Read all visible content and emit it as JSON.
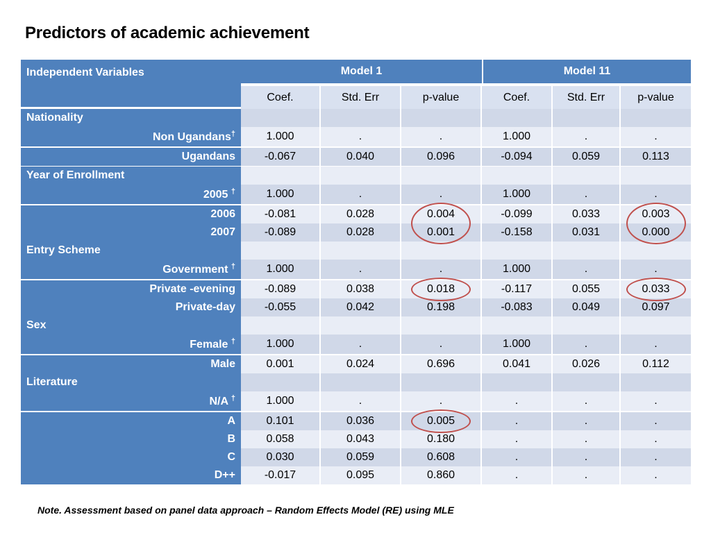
{
  "title": "Predictors of academic achievement",
  "note": "Note. Assessment based on panel data approach – Random Effects Model (RE) using MLE",
  "header": {
    "var_label": "Independent Variables",
    "model1": "Model 1",
    "model2": "Model 11",
    "sub": [
      "Coef.",
      "Std. Err",
      "p-value",
      "Coef.",
      "Std. Err",
      "p-value"
    ]
  },
  "dagger": "†",
  "rows": [
    {
      "label": "Nationality",
      "cat": true
    },
    {
      "label": "Non Ugandans",
      "ref": true,
      "vals": [
        "1.000",
        ".",
        ".",
        "1.000",
        ".",
        "."
      ]
    },
    {
      "label": "Ugandans",
      "vals": [
        "-0.067",
        "0.040",
        "0.096",
        "-0.094",
        "0.059",
        "0.113"
      ]
    },
    {
      "label": "Year of Enrollment",
      "cat": true
    },
    {
      "label": "2005 ",
      "ref": true,
      "vals": [
        "1.000",
        ".",
        ".",
        "1.000",
        ".",
        "."
      ]
    },
    {
      "label": "2006",
      "vals": [
        "-0.081",
        "0.028",
        "0.004",
        "-0.099",
        "0.033",
        "0.003"
      ]
    },
    {
      "label": "2007",
      "vals": [
        "-0.089",
        "0.028",
        "0.001",
        "-0.158",
        "0.031",
        "0.000"
      ]
    },
    {
      "label": "Entry Scheme",
      "cat": true
    },
    {
      "label": "Government ",
      "ref": true,
      "vals": [
        "1.000",
        ".",
        ".",
        "1.000",
        ".",
        "."
      ]
    },
    {
      "label": "Private -evening",
      "vals": [
        "-0.089",
        "0.038",
        "0.018",
        "-0.117",
        "0.055",
        "0.033"
      ]
    },
    {
      "label": "Private-day",
      "vals": [
        "-0.055",
        "0.042",
        "0.198",
        "-0.083",
        "0.049",
        "0.097"
      ]
    },
    {
      "label": "Sex",
      "cat": true
    },
    {
      "label": "Female ",
      "ref": true,
      "vals": [
        "1.000",
        ".",
        ".",
        "1.000",
        ".",
        "."
      ]
    },
    {
      "label": "Male",
      "vals": [
        "0.001",
        "0.024",
        "0.696",
        "0.041",
        "0.026",
        "0.112"
      ]
    },
    {
      "label": "Literature",
      "cat": true
    },
    {
      "label": "N/A ",
      "ref": true,
      "vals": [
        "1.000",
        ".",
        ".",
        ".",
        ".",
        "."
      ]
    },
    {
      "label": "A",
      "vals": [
        "0.101",
        "0.036",
        "0.005",
        ".",
        ".",
        "."
      ]
    },
    {
      "label": "B",
      "vals": [
        "0.058",
        "0.043",
        "0.180",
        ".",
        ".",
        "."
      ]
    },
    {
      "label": "C",
      "vals": [
        "0.030",
        "0.059",
        "0.608",
        ".",
        ".",
        "."
      ]
    },
    {
      "label": "D++",
      "vals": [
        "-0.017",
        "0.095",
        "0.860",
        ".",
        ".",
        "."
      ]
    }
  ],
  "significant_cells": [
    [
      5,
      2
    ],
    [
      5,
      5
    ],
    [
      6,
      2
    ],
    [
      6,
      5
    ],
    [
      9,
      2
    ],
    [
      9,
      5
    ],
    [
      16,
      2
    ]
  ],
  "colors": {
    "header": "#4f81bd",
    "cell_light": "#e9edf6",
    "cell_dark": "#d0d8e8",
    "circle": "#c0504d",
    "highlight_text": "#2e4f9a"
  }
}
